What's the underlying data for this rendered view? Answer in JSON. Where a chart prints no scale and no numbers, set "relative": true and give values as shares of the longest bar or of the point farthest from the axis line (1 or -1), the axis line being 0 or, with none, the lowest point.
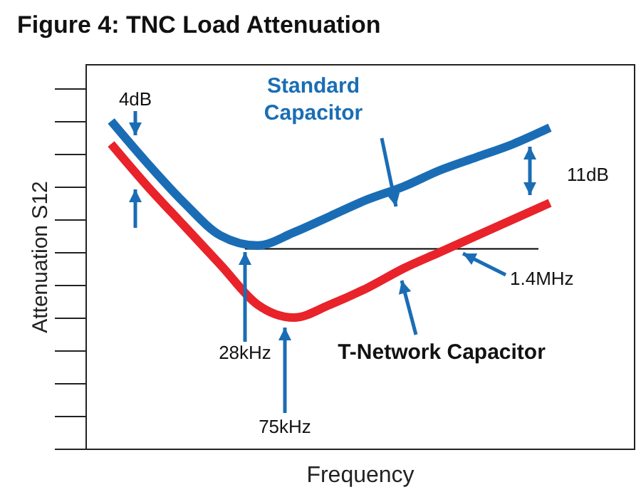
{
  "chart_data": {
    "type": "line",
    "title": "Figure 4: TNC Load Attenuation",
    "xlabel": "Frequency",
    "ylabel": "Attenuation S12",
    "relative": true,
    "grid": false,
    "marker": "none",
    "line_style": "solid",
    "categories": [
      null,
      null,
      null,
      null,
      null,
      null,
      null,
      null,
      null,
      null,
      null,
      null,
      null
    ],
    "series": [
      {
        "name": "Standard Capacitor",
        "color": "#1a6db5",
        "values": [
          1.0,
          0.87,
          0.75,
          0.65,
          0.62,
          0.66,
          0.71,
          0.76,
          0.8,
          0.85,
          0.89,
          0.93,
          0.98
        ]
      },
      {
        "name": "T-Network Capacitor",
        "color": "#e8232a",
        "values": [
          0.93,
          0.8,
          0.68,
          0.56,
          0.44,
          0.4,
          0.44,
          0.49,
          0.55,
          0.6,
          0.65,
          0.7,
          0.75
        ]
      }
    ],
    "ref_lines": [
      {
        "axis": "y",
        "value": 0.61,
        "color": "#000000"
      }
    ],
    "annotations": [
      "4dB",
      "11dB",
      "1.4MHz",
      "28kHz",
      "75kHz"
    ]
  }
}
